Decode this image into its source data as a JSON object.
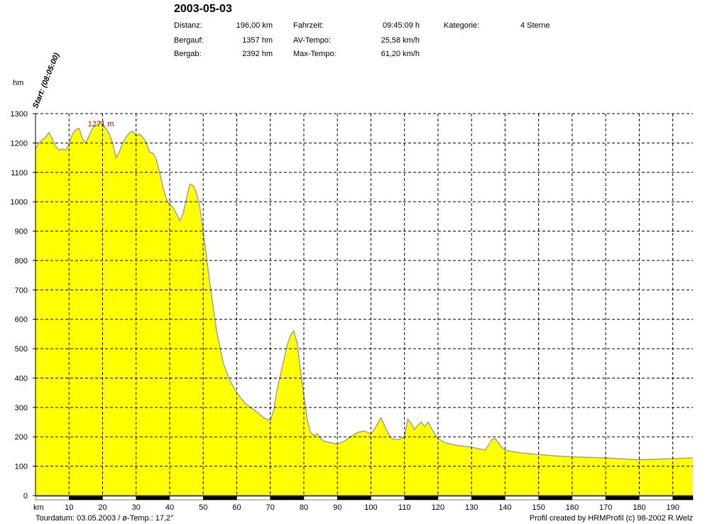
{
  "header": {
    "date": "2003-05-03",
    "stats": [
      {
        "label": "Distanz:",
        "value": "196,00 km"
      },
      {
        "label": "Bergauf:",
        "value": "1357 hm"
      },
      {
        "label": "Bergab:",
        "value": "2392 hm"
      },
      {
        "label": "Fahrzeit:",
        "value": "09:45:09 h"
      },
      {
        "label": "AV-Tempo:",
        "value": "25,58 km/h"
      },
      {
        "label": "Max-Tempo:",
        "value": "61,20 km/h"
      },
      {
        "label": "Kategorie:",
        "value": "4 Sterne"
      }
    ]
  },
  "start_label": "Start: (08:05:00)",
  "footer": {
    "left": "Tourdatum: 03.05.2003  /  ø-Temp.: 17,2°",
    "right": "Profil created by HRMProfil (c) 98-2002 R.Welz"
  },
  "chart_data": {
    "type": "area",
    "ylabel": "hm",
    "xlabel": "km",
    "xlim": [
      0,
      196
    ],
    "ylim": [
      0,
      1300
    ],
    "x_ticks": [
      10,
      20,
      30,
      40,
      50,
      60,
      70,
      80,
      90,
      100,
      110,
      120,
      130,
      140,
      150,
      160,
      170,
      180,
      190
    ],
    "y_ticks": [
      0,
      100,
      200,
      300,
      400,
      500,
      600,
      700,
      800,
      900,
      1000,
      1100,
      1200,
      1300
    ],
    "grid": true,
    "fill_color": "#ffff00",
    "line_color": "#a0a0a0",
    "annotation": {
      "text": "1271 m",
      "x": 19.5,
      "y": 1271,
      "color": "#c00000"
    },
    "series": [
      {
        "x": [
          0,
          1,
          2,
          3,
          4,
          5,
          6,
          7,
          8,
          9,
          10,
          11,
          12,
          13,
          14,
          15,
          16,
          17,
          18,
          19,
          19.5,
          20,
          21,
          22,
          23,
          24,
          25,
          26,
          27,
          28,
          29,
          30,
          31,
          32,
          33,
          34,
          35,
          36,
          37,
          38,
          39,
          40,
          41,
          42,
          43,
          44,
          45,
          46,
          47,
          48,
          49,
          50,
          52,
          54,
          56,
          58,
          60,
          62,
          64,
          66,
          68,
          70,
          71,
          72,
          73,
          74,
          75,
          76,
          77,
          78,
          79,
          80,
          81,
          82,
          83,
          84,
          85,
          86,
          88,
          90,
          92,
          94,
          96,
          98,
          100,
          101,
          102,
          103,
          104,
          105,
          106,
          108,
          110,
          111,
          112,
          113,
          114,
          115,
          116,
          117,
          118,
          119,
          120,
          122,
          124,
          126,
          128,
          130,
          132,
          134,
          135,
          136,
          137,
          138,
          139,
          140,
          142,
          145,
          150,
          155,
          160,
          165,
          170,
          175,
          180,
          185,
          190,
          196
        ],
        "values": [
          1180,
          1200,
          1210,
          1220,
          1235,
          1215,
          1190,
          1175,
          1180,
          1175,
          1195,
          1230,
          1245,
          1250,
          1215,
          1200,
          1225,
          1250,
          1260,
          1265,
          1271,
          1258,
          1250,
          1230,
          1200,
          1150,
          1170,
          1200,
          1220,
          1235,
          1240,
          1225,
          1230,
          1220,
          1200,
          1170,
          1165,
          1145,
          1100,
          1050,
          1010,
          990,
          980,
          960,
          935,
          960,
          1010,
          1060,
          1055,
          1030,
          980,
          900,
          720,
          560,
          450,
          390,
          350,
          320,
          300,
          285,
          265,
          255,
          290,
          360,
          410,
          460,
          510,
          545,
          560,
          520,
          430,
          340,
          260,
          215,
          205,
          210,
          195,
          185,
          180,
          175,
          185,
          200,
          215,
          220,
          210,
          225,
          245,
          265,
          240,
          215,
          195,
          190,
          200,
          260,
          245,
          225,
          240,
          250,
          235,
          250,
          230,
          210,
          195,
          180,
          175,
          170,
          168,
          165,
          160,
          155,
          170,
          190,
          195,
          180,
          165,
          155,
          150,
          145,
          140,
          135,
          132,
          130,
          128,
          125,
          122,
          124,
          126,
          128
        ]
      }
    ]
  }
}
